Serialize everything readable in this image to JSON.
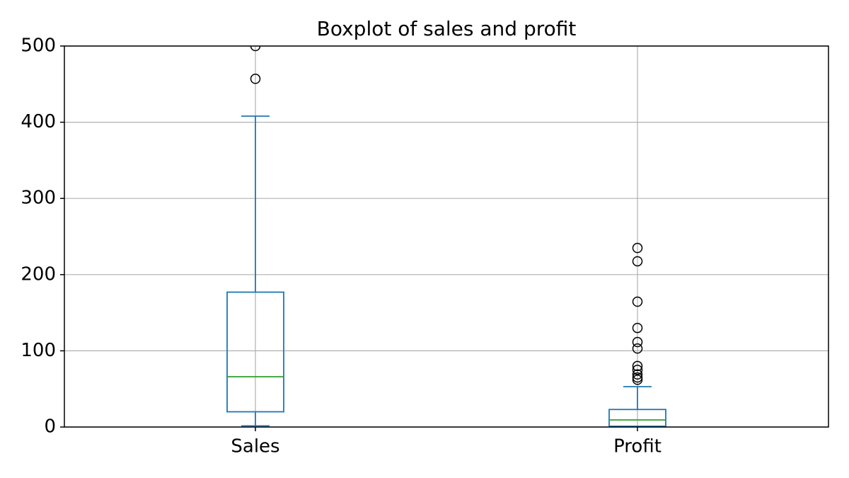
{
  "chart_data": {
    "type": "box",
    "title": "Boxplot of sales and profit",
    "categories": [
      "Sales",
      "Profit"
    ],
    "boxes": [
      {
        "whislo": 1.5,
        "q1": 20,
        "med": 66,
        "q3": 177,
        "whishi": 408,
        "fliers": [
          457,
          500
        ]
      },
      {
        "whislo": 0.5,
        "q1": 1,
        "med": 9.3,
        "q3": 23,
        "whishi": 53,
        "fliers": [
          235,
          217.5,
          164.5,
          130,
          111.5,
          103,
          80,
          75,
          69,
          65,
          62
        ]
      }
    ],
    "box_color": "#1f77b4",
    "median_color": "#2ca02c",
    "flier_color": "#000000",
    "ylim": [
      0,
      500
    ],
    "yticks": [
      0,
      100,
      200,
      300,
      400,
      500
    ],
    "grid": true
  }
}
